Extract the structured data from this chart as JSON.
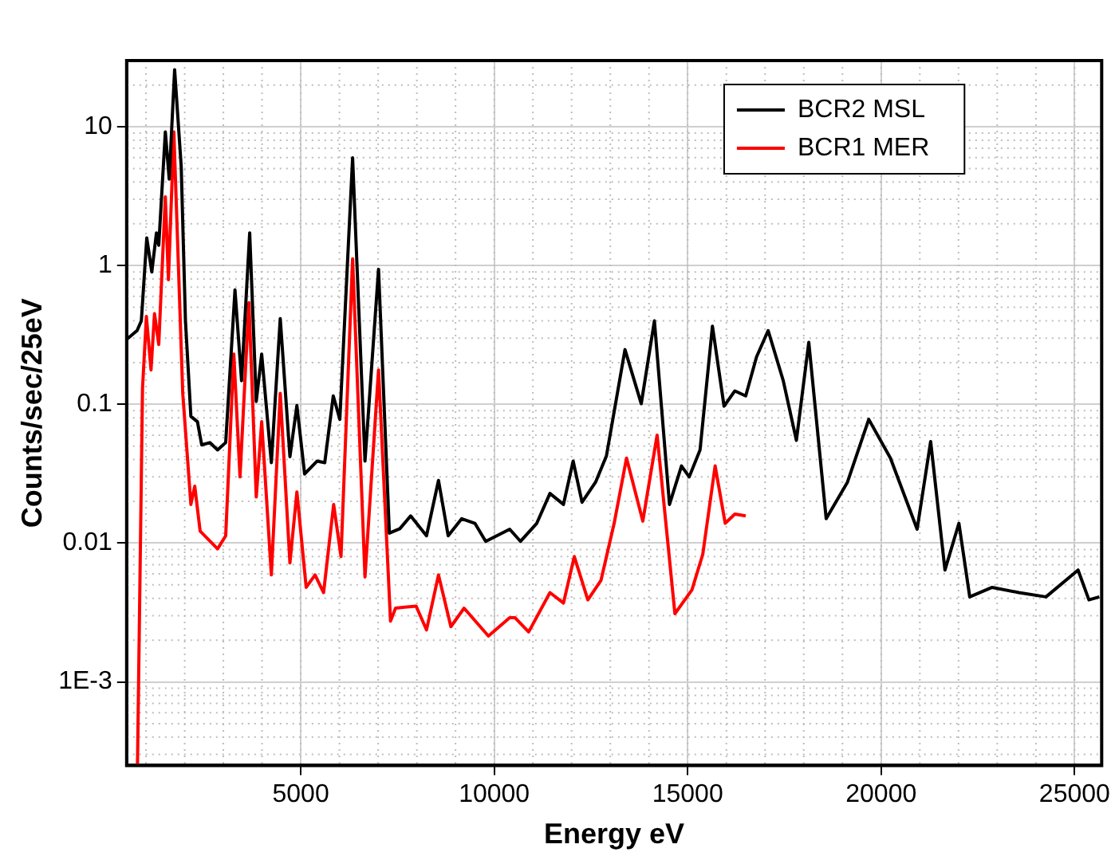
{
  "chart_data": {
    "type": "line",
    "xlabel": "Energy eV",
    "ylabel": "Counts/sec/25eV",
    "log": "y",
    "grid": true,
    "legend": "top right",
    "marker": "none",
    "line_style": "solid",
    "xlim": [
      500,
      25700
    ],
    "xticks": [
      5000,
      10000,
      15000,
      20000,
      25000
    ],
    "ylim": [
      0.00025,
      30
    ],
    "yticks": [
      {
        "value": 0.001,
        "label": "1E-3"
      },
      0.01,
      0.1,
      1,
      10
    ],
    "series": [
      {
        "name": "BCR2 MSL",
        "color": "#000000",
        "x": [
          520,
          770,
          880,
          1020,
          1150,
          1270,
          1330,
          1500,
          1600,
          1740,
          1910,
          2020,
          2160,
          2330,
          2440,
          2650,
          2850,
          3060,
          3300,
          3470,
          3680,
          3850,
          3990,
          4240,
          4470,
          4720,
          4900,
          5100,
          5420,
          5620,
          5840,
          6010,
          6340,
          6660,
          7010,
          7290,
          7560,
          7840,
          8250,
          8560,
          8810,
          9160,
          9500,
          9780,
          10400,
          10680,
          11100,
          11440,
          11790,
          12040,
          12270,
          12620,
          12900,
          13380,
          13800,
          14140,
          14530,
          14840,
          15040,
          15320,
          15640,
          15940,
          16220,
          16500,
          16780,
          17080,
          17470,
          17810,
          18130,
          18580,
          19130,
          19680,
          20240,
          20930,
          21280,
          21650,
          22010,
          22290,
          22870,
          23560,
          24260,
          25090,
          25370,
          25640
        ],
        "values": [
          0.297,
          0.34,
          0.4,
          1.58,
          0.9,
          1.72,
          1.4,
          9.2,
          4.2,
          25.8,
          5.2,
          0.4,
          0.082,
          0.075,
          0.051,
          0.053,
          0.047,
          0.053,
          0.667,
          0.148,
          1.72,
          0.105,
          0.23,
          0.038,
          0.415,
          0.042,
          0.098,
          0.0315,
          0.039,
          0.038,
          0.115,
          0.078,
          5.97,
          0.039,
          0.94,
          0.0118,
          0.0127,
          0.0157,
          0.0113,
          0.0283,
          0.0113,
          0.015,
          0.0139,
          0.0103,
          0.0126,
          0.0103,
          0.0139,
          0.0228,
          0.019,
          0.039,
          0.0197,
          0.0275,
          0.0425,
          0.248,
          0.101,
          0.4,
          0.019,
          0.036,
          0.03,
          0.047,
          0.366,
          0.097,
          0.125,
          0.115,
          0.22,
          0.34,
          0.148,
          0.055,
          0.28,
          0.015,
          0.0275,
          0.078,
          0.041,
          0.0126,
          0.054,
          0.0064,
          0.0139,
          0.0041,
          0.0048,
          0.0044,
          0.0041,
          0.0064,
          0.0039,
          0.0041
        ]
      },
      {
        "name": "BCR1 MER",
        "color": "#ff0000",
        "x": [
          780,
          910,
          1010,
          1130,
          1220,
          1330,
          1500,
          1580,
          1720,
          1950,
          2160,
          2260,
          2400,
          2850,
          3060,
          3270,
          3430,
          3660,
          3850,
          3990,
          4240,
          4470,
          4720,
          4900,
          5140,
          5370,
          5590,
          5850,
          6040,
          6340,
          6660,
          7010,
          7320,
          7450,
          7980,
          8250,
          8560,
          8880,
          9220,
          9850,
          10400,
          10540,
          10890,
          11440,
          11790,
          12070,
          12420,
          12760,
          13100,
          13420,
          13840,
          14210,
          14670,
          15110,
          15390,
          15710,
          15970,
          16220,
          16500
        ],
        "values": [
          0.00025,
          0.13,
          0.43,
          0.177,
          0.45,
          0.27,
          3.13,
          0.79,
          9.2,
          0.12,
          0.019,
          0.0257,
          0.0122,
          0.0091,
          0.0113,
          0.23,
          0.03,
          0.54,
          0.0215,
          0.075,
          0.0059,
          0.12,
          0.0072,
          0.0234,
          0.0048,
          0.0059,
          0.0044,
          0.019,
          0.008,
          1.12,
          0.0057,
          0.177,
          0.00274,
          0.0034,
          0.00352,
          0.00237,
          0.0059,
          0.0025,
          0.0034,
          0.00214,
          0.0029,
          0.0029,
          0.00229,
          0.0044,
          0.0037,
          0.008,
          0.0039,
          0.0054,
          0.0139,
          0.041,
          0.0144,
          0.06,
          0.0031,
          0.0046,
          0.0083,
          0.036,
          0.0139,
          0.0162,
          0.0157
        ]
      }
    ]
  }
}
